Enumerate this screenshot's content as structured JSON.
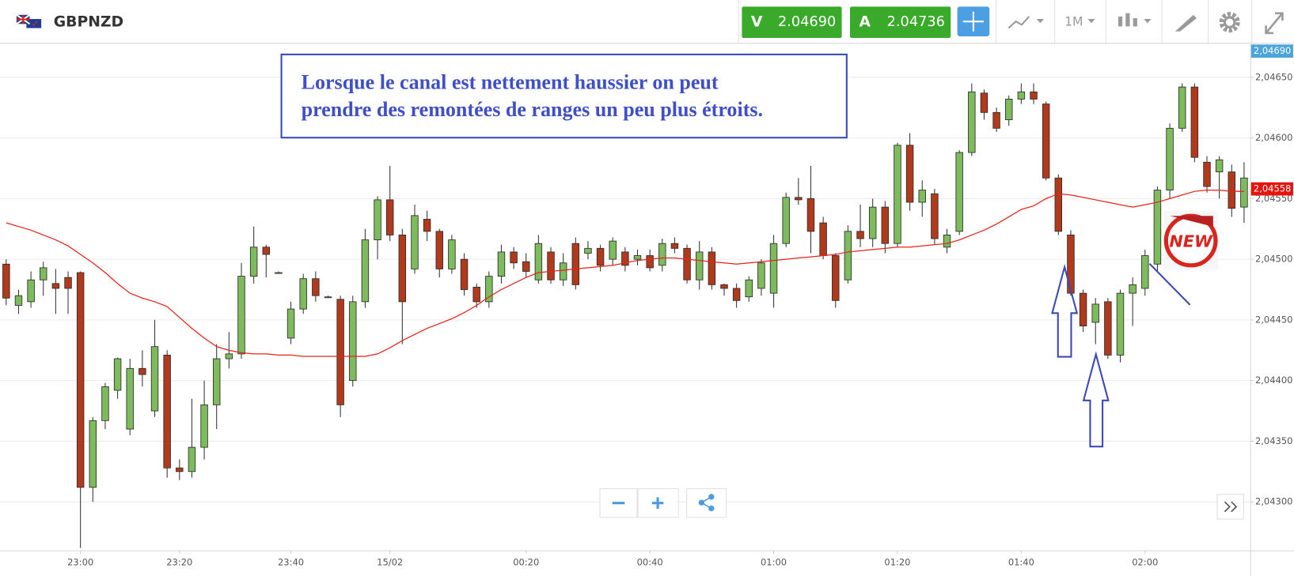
{
  "toolbar": {
    "symbol": "GBPNZD",
    "bid_label": "V",
    "bid": "2.04690",
    "ask_label": "A",
    "ask": "2.04736",
    "timeframe": "1M"
  },
  "chart_data": {
    "type": "candlestick",
    "annotations": [
      "Lorsque le canal est nettement haussier on peut",
      "prendre des remontées de ranges un peu plus étroits."
    ],
    "sticker": "NEW",
    "categories": [
      null,
      null,
      null,
      null,
      null,
      null,
      "23:00",
      null,
      null,
      null,
      null,
      null,
      null,
      null,
      "23:20",
      null,
      null,
      null,
      null,
      null,
      null,
      null,
      null,
      "23:40",
      null,
      null,
      null,
      null,
      null,
      null,
      null,
      "15/02",
      null,
      null,
      null,
      null,
      null,
      null,
      null,
      null,
      null,
      null,
      "00:20",
      null,
      null,
      null,
      null,
      null,
      null,
      null,
      null,
      null,
      "00:40",
      null,
      null,
      null,
      null,
      null,
      null,
      null,
      null,
      null,
      "01:00",
      null,
      null,
      null,
      null,
      null,
      null,
      null,
      null,
      null,
      "01:20",
      null,
      null,
      null,
      null,
      null,
      null,
      null,
      null,
      null,
      "01:40",
      null,
      null,
      null,
      null,
      null,
      null,
      null,
      null,
      null,
      "02:00",
      null,
      null,
      null,
      null,
      null,
      null,
      null,
      null
    ],
    "open": [
      2.04496,
      2.04462,
      2.04465,
      2.04483,
      2.0448,
      2.04485,
      2.04489,
      2.04312,
      2.04367,
      2.04392,
      2.0436,
      2.0441,
      2.04375,
      2.04421,
      2.04328,
      2.04325,
      2.04345,
      2.0438,
      2.04418,
      2.04422,
      2.04486,
      2.0451,
      2.04489,
      2.04435,
      2.04459,
      2.04484,
      2.04469,
      2.04467,
      2.044,
      2.04465,
      2.04516,
      2.04549,
      2.0452,
      2.04492,
      2.04533,
      2.04523,
      2.04492,
      2.045,
      2.04477,
      2.04465,
      2.04486,
      2.04506,
      2.04498,
      2.04483,
      2.04506,
      2.04483,
      2.04513,
      2.04505,
      2.04509,
      2.045,
      2.04506,
      2.045,
      2.04503,
      2.04495,
      2.04513,
      2.04509,
      2.04483,
      2.04506,
      2.04479,
      2.04476,
      2.04469,
      2.04476,
      2.04472,
      2.04513,
      2.04551,
      2.0455,
      2.0453,
      2.04503,
      2.04483,
      2.04523,
      2.04517,
      2.04543,
      2.04513,
      2.04594,
      2.04547,
      2.04554,
      2.0451,
      2.04523,
      2.04588,
      2.04637,
      2.04621,
      2.04615,
      2.04632,
      2.04638,
      2.04628,
      2.04567,
      2.0452,
      2.04472,
      2.04448,
      2.04465,
      2.04421,
      2.04472,
      2.04476,
      2.04496,
      2.04557,
      2.04608,
      2.04642,
      2.0458,
      2.04572,
      2.04572,
      2.04543
    ],
    "high": [
      2.045,
      2.04475,
      2.0449,
      2.04498,
      2.04492,
      2.0449,
      2.0449,
      2.0437,
      2.04398,
      2.04419,
      2.04418,
      2.04425,
      2.0445,
      2.04425,
      2.04335,
      2.04385,
      2.044,
      2.0443,
      2.0444,
      2.04497,
      2.04527,
      2.04512,
      2.0449,
      2.04465,
      2.04488,
      2.0449,
      2.0447,
      2.0447,
      2.0447,
      2.04525,
      2.04552,
      2.04577,
      2.04525,
      2.04545,
      2.0454,
      2.04525,
      2.0452,
      2.04505,
      2.0448,
      2.0449,
      2.04512,
      2.0451,
      2.04505,
      2.0452,
      2.0451,
      2.04505,
      2.04518,
      2.04515,
      2.04512,
      2.04518,
      2.0451,
      2.04508,
      2.04508,
      2.04517,
      2.04518,
      2.04512,
      2.04515,
      2.0451,
      2.0448,
      2.0448,
      2.04486,
      2.045,
      2.0452,
      2.04555,
      2.04567,
      2.04577,
      2.04535,
      2.04505,
      2.04528,
      2.04545,
      2.0455,
      2.04548,
      2.04596,
      2.04604,
      2.04565,
      2.04558,
      2.04525,
      2.0459,
      2.04645,
      2.0464,
      2.04625,
      2.04635,
      2.04645,
      2.04645,
      2.0463,
      2.0457,
      2.04524,
      2.04475,
      2.04468,
      2.04468,
      2.04475,
      2.04485,
      2.04508,
      2.0456,
      2.04612,
      2.04645,
      2.04645,
      2.04585,
      2.04585,
      2.04578,
      2.0458
    ],
    "low": [
      2.04462,
      2.04455,
      2.0446,
      2.0447,
      2.04455,
      2.04455,
      2.04262,
      2.043,
      2.0436,
      2.04385,
      2.04355,
      2.04395,
      2.0437,
      2.0432,
      2.04318,
      2.0432,
      2.04335,
      2.0436,
      2.0441,
      2.04418,
      2.0448,
      2.04485,
      2.04488,
      2.0443,
      2.04455,
      2.04465,
      2.04468,
      2.0437,
      2.04395,
      2.0446,
      2.045,
      2.04515,
      2.0443,
      2.04488,
      2.04515,
      2.04485,
      2.04488,
      2.0447,
      2.0446,
      2.0446,
      2.0448,
      2.04492,
      2.04485,
      2.0448,
      2.0448,
      2.04478,
      2.04475,
      2.045,
      2.0449,
      2.04495,
      2.0449,
      2.04495,
      2.0449,
      2.0449,
      2.04505,
      2.0448,
      2.04475,
      2.04475,
      2.0447,
      2.0446,
      2.04465,
      2.0447,
      2.0446,
      2.0451,
      2.04545,
      2.04505,
      2.045,
      2.0446,
      2.0448,
      2.0451,
      2.0451,
      2.04505,
      2.0451,
      2.0454,
      2.04535,
      2.04512,
      2.04505,
      2.0452,
      2.04585,
      2.04615,
      2.04605,
      2.0461,
      2.04628,
      2.04628,
      2.04565,
      2.0452,
      2.0447,
      2.0444,
      2.0443,
      2.04418,
      2.04415,
      2.04445,
      2.0447,
      2.0449,
      2.0455,
      2.04605,
      2.0458,
      2.04555,
      2.0455,
      2.04535,
      2.0453
    ],
    "close": [
      2.04468,
      2.0447,
      2.04483,
      2.04493,
      2.04476,
      2.04476,
      2.04312,
      2.04367,
      2.04395,
      2.04418,
      2.0441,
      2.04405,
      2.04428,
      2.04328,
      2.04325,
      2.04345,
      2.0438,
      2.04418,
      2.04422,
      2.04486,
      2.0451,
      2.04504,
      2.04489,
      2.04459,
      2.04484,
      2.0447,
      2.04469,
      2.0438,
      2.04465,
      2.04516,
      2.04549,
      2.0452,
      2.04465,
      2.04536,
      2.04523,
      2.04492,
      2.04516,
      2.04475,
      2.04465,
      2.04486,
      2.04506,
      2.04497,
      2.0449,
      2.04513,
      2.04483,
      2.04497,
      2.04479,
      2.04509,
      2.04495,
      2.04515,
      2.04495,
      2.04503,
      2.04493,
      2.04513,
      2.04509,
      2.04483,
      2.04506,
      2.04479,
      2.04476,
      2.04466,
      2.04483,
      2.04497,
      2.04513,
      2.04551,
      2.04549,
      2.04523,
      2.04503,
      2.04466,
      2.04523,
      2.04517,
      2.04543,
      2.04513,
      2.04594,
      2.04547,
      2.04557,
      2.04517,
      2.0452,
      2.04588,
      2.04638,
      2.04621,
      2.04608,
      2.04632,
      2.04638,
      2.04632,
      2.04567,
      2.04523,
      2.04472,
      2.04445,
      2.04463,
      2.04421,
      2.04472,
      2.04479,
      2.04503,
      2.04557,
      2.04608,
      2.04642,
      2.04584,
      2.0456,
      2.04582,
      2.04542,
      2.04567
    ],
    "up_color": "#7dbb5c",
    "down_color": "#b23a1c",
    "ma": {
      "color": "#e8231a",
      "values": [
        2.0453,
        2.04527,
        2.04524,
        2.0452,
        2.04516,
        2.04511,
        2.04504,
        2.04497,
        2.04489,
        2.0448,
        2.04472,
        2.04468,
        2.04465,
        2.04461,
        2.04452,
        2.04443,
        2.04435,
        2.04428,
        2.04425,
        2.04423,
        2.04422,
        2.04422,
        2.04421,
        2.04421,
        2.0442,
        2.0442,
        2.0442,
        2.0442,
        2.0442,
        2.0442,
        2.04422,
        2.04427,
        2.04433,
        2.04438,
        2.04443,
        2.04447,
        2.04451,
        2.04456,
        2.04462,
        2.04469,
        2.04475,
        2.0448,
        2.04485,
        2.04489,
        2.0449,
        2.04491,
        2.04492,
        2.04493,
        2.04494,
        2.04495,
        2.04497,
        2.04499,
        2.045,
        2.04501,
        2.04501,
        2.045,
        2.04499,
        2.04498,
        2.04497,
        2.04496,
        2.04497,
        2.04498,
        2.04499,
        2.045,
        2.04501,
        2.04502,
        2.04503,
        2.04504,
        2.04506,
        2.04507,
        2.04508,
        2.04509,
        2.0451,
        2.0451,
        2.04511,
        2.04512,
        2.04513,
        2.04516,
        2.0452,
        2.04524,
        2.04529,
        2.04535,
        2.04541,
        2.04544,
        2.0455,
        2.04554,
        2.04553,
        2.04551,
        2.04549,
        2.04547,
        2.04545,
        2.04543,
        2.04545,
        2.04547,
        2.0455,
        2.04553,
        2.04556,
        2.04557,
        2.04557,
        2.04556,
        2.04556
      ]
    },
    "ylim": [
      2.0426,
      2.04677
    ],
    "yticks": [
      {
        "value": 2.043,
        "label": "2,04300"
      },
      {
        "value": 2.0435,
        "label": "2,04350"
      },
      {
        "value": 2.044,
        "label": "2,04400"
      },
      {
        "value": 2.0445,
        "label": "2,04450"
      },
      {
        "value": 2.045,
        "label": "2,04500"
      },
      {
        "value": 2.0455,
        "label": "2,04550"
      },
      {
        "value": 2.046,
        "label": "2,04600"
      },
      {
        "value": 2.0465,
        "label": "2,04650"
      }
    ],
    "grid": true,
    "price_markers": [
      {
        "value": 2.0469,
        "label": "2,04690",
        "color": "#4ba4da"
      },
      {
        "value": 2.04558,
        "label": "2,04558",
        "color": "#e8140c"
      }
    ]
  }
}
